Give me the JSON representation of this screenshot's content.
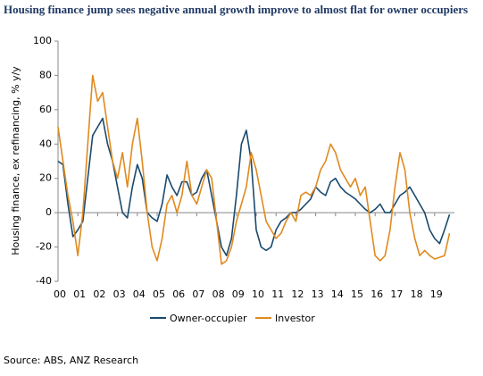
{
  "chart_data": {
    "type": "line",
    "title": "Housing finance jump sees negative annual growth improve to almost flat for owner occupiers",
    "y_label": "Housing finance, ex refinancing, % y/y",
    "source": "Source: ABS, ANZ Research",
    "x": [
      2000,
      2000.25,
      2000.5,
      2000.75,
      2001,
      2001.25,
      2001.5,
      2001.75,
      2002,
      2002.25,
      2002.5,
      2002.75,
      2003,
      2003.25,
      2003.5,
      2003.75,
      2004,
      2004.25,
      2004.5,
      2004.75,
      2005,
      2005.25,
      2005.5,
      2005.75,
      2006,
      2006.25,
      2006.5,
      2006.75,
      2007,
      2007.25,
      2007.5,
      2007.75,
      2008,
      2008.25,
      2008.5,
      2008.75,
      2009,
      2009.25,
      2009.5,
      2009.75,
      2010,
      2010.25,
      2010.5,
      2010.75,
      2011,
      2011.25,
      2011.5,
      2011.75,
      2012,
      2012.25,
      2012.5,
      2012.75,
      2013,
      2013.25,
      2013.5,
      2013.75,
      2014,
      2014.25,
      2014.5,
      2014.75,
      2015,
      2015.25,
      2015.5,
      2015.75,
      2016,
      2016.25,
      2016.5,
      2016.75,
      2017,
      2017.25,
      2017.5,
      2017.75,
      2018,
      2018.25,
      2018.5,
      2018.75,
      2019,
      2019.25,
      2019.5,
      2019.75
    ],
    "series": [
      {
        "name": "Owner-occupier",
        "color": "#1a4a6e",
        "values": [
          30,
          28,
          5,
          -14,
          -10,
          -5,
          20,
          45,
          50,
          55,
          40,
          30,
          15,
          0,
          -3,
          15,
          28,
          20,
          0,
          -3,
          -5,
          5,
          22,
          15,
          10,
          18,
          18,
          10,
          12,
          20,
          25,
          10,
          -5,
          -20,
          -25,
          -15,
          10,
          40,
          48,
          30,
          -10,
          -20,
          -22,
          -20,
          -10,
          -5,
          -3,
          0,
          0,
          2,
          5,
          8,
          15,
          12,
          10,
          18,
          20,
          15,
          12,
          10,
          8,
          5,
          2,
          0,
          2,
          5,
          0,
          0,
          5,
          10,
          12,
          15,
          10,
          5,
          0,
          -10,
          -15,
          -18,
          -10,
          -1
        ]
      },
      {
        "name": "Investor",
        "color": "#e08a1e",
        "values": [
          50,
          30,
          10,
          -5,
          -25,
          0,
          40,
          80,
          65,
          70,
          50,
          30,
          20,
          35,
          15,
          40,
          55,
          30,
          0,
          -20,
          -28,
          -15,
          5,
          10,
          0,
          10,
          30,
          10,
          5,
          15,
          25,
          20,
          -5,
          -30,
          -28,
          -20,
          -5,
          5,
          15,
          35,
          25,
          10,
          -5,
          -10,
          -15,
          -12,
          -5,
          0,
          -5,
          10,
          12,
          10,
          15,
          25,
          30,
          40,
          35,
          25,
          20,
          15,
          20,
          10,
          15,
          -5,
          -25,
          -28,
          -25,
          -10,
          15,
          35,
          25,
          0,
          -15,
          -25,
          -22,
          -25,
          -27,
          -26,
          -25,
          -12
        ]
      }
    ],
    "xlim": [
      2000,
      2020
    ],
    "xticks": [
      {
        "value": 2000,
        "label": "00"
      },
      {
        "value": 2001,
        "label": "01"
      },
      {
        "value": 2002,
        "label": "02"
      },
      {
        "value": 2003,
        "label": "03"
      },
      {
        "value": 2004,
        "label": "04"
      },
      {
        "value": 2005,
        "label": "05"
      },
      {
        "value": 2006,
        "label": "06"
      },
      {
        "value": 2007,
        "label": "07"
      },
      {
        "value": 2008,
        "label": "08"
      },
      {
        "value": 2009,
        "label": "09"
      },
      {
        "value": 2010,
        "label": "10"
      },
      {
        "value": 2011,
        "label": "11"
      },
      {
        "value": 2012,
        "label": "12"
      },
      {
        "value": 2013,
        "label": "13"
      },
      {
        "value": 2014,
        "label": "14"
      },
      {
        "value": 2015,
        "label": "15"
      },
      {
        "value": 2016,
        "label": "16"
      },
      {
        "value": 2017,
        "label": "17"
      },
      {
        "value": 2018,
        "label": "18"
      },
      {
        "value": 2019,
        "label": "19"
      }
    ],
    "ylim": [
      -40,
      100
    ],
    "yticks": [
      100,
      80,
      60,
      40,
      20,
      0,
      -20,
      -40
    ],
    "grid": false,
    "legend": "bottom"
  }
}
